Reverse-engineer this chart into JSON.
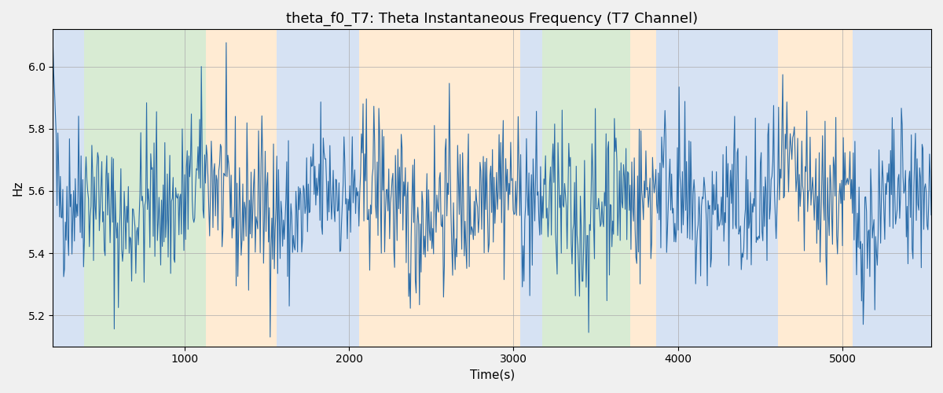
{
  "title": "theta_f0_T7: Theta Instantaneous Frequency (T7 Channel)",
  "xlabel": "Time(s)",
  "ylabel": "Hz",
  "line_color": "#2b6ca8",
  "line_width": 0.8,
  "ylim": [
    5.1,
    6.12
  ],
  "xlim": [
    200,
    5540
  ],
  "grid_color": "#aaaaaa",
  "grid_alpha": 0.7,
  "bands": [
    {
      "xmin": 200,
      "xmax": 390,
      "color": "#aec6e8",
      "alpha": 0.5
    },
    {
      "xmin": 390,
      "xmax": 1130,
      "color": "#b2d8a8",
      "alpha": 0.5
    },
    {
      "xmin": 1130,
      "xmax": 1560,
      "color": "#ffd8a8",
      "alpha": 0.5
    },
    {
      "xmin": 1560,
      "xmax": 2060,
      "color": "#aec6e8",
      "alpha": 0.5
    },
    {
      "xmin": 2060,
      "xmax": 3040,
      "color": "#ffd8a8",
      "alpha": 0.5
    },
    {
      "xmin": 3040,
      "xmax": 3175,
      "color": "#aec6e8",
      "alpha": 0.5
    },
    {
      "xmin": 3175,
      "xmax": 3710,
      "color": "#b2d8a8",
      "alpha": 0.5
    },
    {
      "xmin": 3710,
      "xmax": 3870,
      "color": "#ffd8a8",
      "alpha": 0.5
    },
    {
      "xmin": 3870,
      "xmax": 4610,
      "color": "#aec6e8",
      "alpha": 0.5
    },
    {
      "xmin": 4610,
      "xmax": 5060,
      "color": "#ffd8a8",
      "alpha": 0.5
    },
    {
      "xmin": 5060,
      "xmax": 5540,
      "color": "#aec6e8",
      "alpha": 0.5
    }
  ],
  "seed": 42,
  "n_points": 1060,
  "t_start": 200,
  "t_end": 5540,
  "base_freq": 5.565,
  "noise_amp": 0.13,
  "slow_amp1": 0.05,
  "slow_period1": 900,
  "slow_amp2": 0.04,
  "slow_period2": 350,
  "title_fontsize": 13,
  "tick_fontsize": 10,
  "xlabel_fontsize": 11,
  "ylabel_fontsize": 11
}
